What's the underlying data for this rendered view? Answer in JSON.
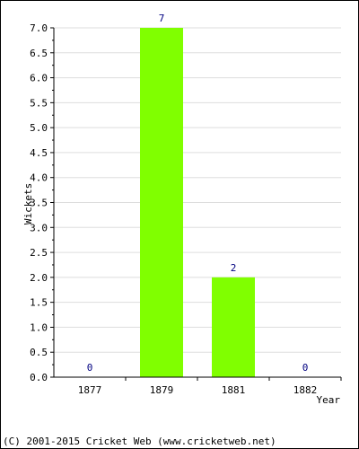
{
  "chart_data": {
    "type": "bar",
    "title": "",
    "xlabel": "Year",
    "ylabel": "Wickets",
    "categories": [
      "1877",
      "1879",
      "1881",
      "1882"
    ],
    "values": [
      0,
      7,
      2,
      0
    ],
    "data_labels": [
      "0",
      "7",
      "2",
      "0"
    ],
    "ylim": [
      0,
      7.0
    ],
    "yticks": [
      "0.0",
      "0.5",
      "1.0",
      "1.5",
      "2.0",
      "2.5",
      "3.0",
      "3.5",
      "4.0",
      "4.5",
      "5.0",
      "5.5",
      "6.0",
      "6.5",
      "7.0"
    ],
    "grid": true,
    "legend": "none",
    "colors": {
      "bar": "#80ff00",
      "grid": "#dddddd",
      "data_label": "#000080",
      "axis": "#000000"
    }
  },
  "footer": {
    "copyright": "(C) 2001-2015 Cricket Web (www.cricketweb.net)"
  }
}
